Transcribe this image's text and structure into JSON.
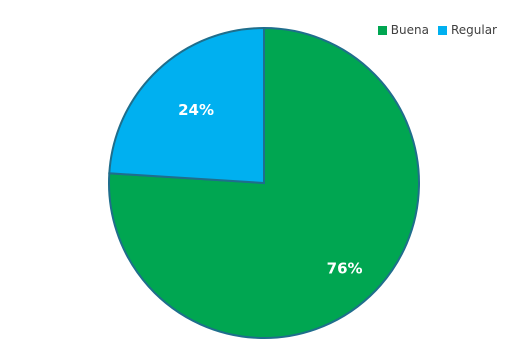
{
  "chart_data": {
    "type": "pie",
    "title": "",
    "categories": [
      "Buena",
      "Regular"
    ],
    "values": [
      76,
      24
    ],
    "data_labels": [
      "76%",
      "24%"
    ],
    "colors": [
      "#00A651",
      "#00B0F0"
    ],
    "border_color": "#1F6E8C",
    "legend_position": "top-right",
    "start_angle_deg": 0,
    "direction": "clockwise"
  }
}
